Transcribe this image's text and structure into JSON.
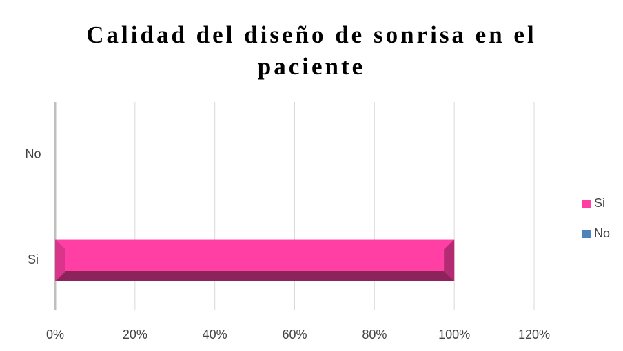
{
  "chart_data": {
    "type": "bar",
    "orientation": "horizontal",
    "title": "Calidad del diseño de sonrisa en el paciente",
    "categories": [
      "Si",
      "No"
    ],
    "values": [
      100,
      0
    ],
    "colors": [
      "#ff3fa4",
      "#4f81bd"
    ],
    "xlim": [
      0,
      120
    ],
    "xticks": [
      {
        "value": 0,
        "label": "0%"
      },
      {
        "value": 20,
        "label": "20%"
      },
      {
        "value": 40,
        "label": "40%"
      },
      {
        "value": 60,
        "label": "60%"
      },
      {
        "value": 80,
        "label": "80%"
      },
      {
        "value": 100,
        "label": "100%"
      },
      {
        "value": 120,
        "label": "120%"
      }
    ],
    "grid": true,
    "legend": "right"
  }
}
